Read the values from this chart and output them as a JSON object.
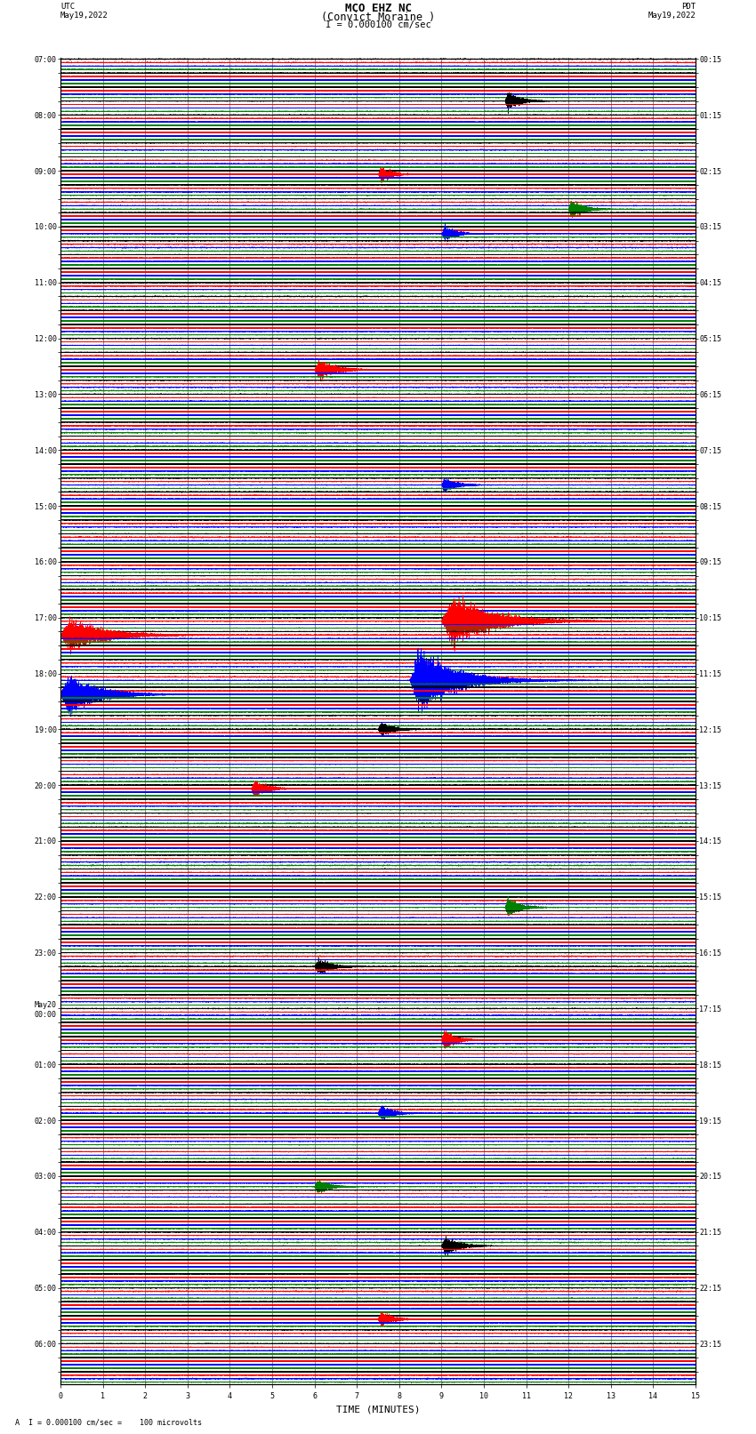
{
  "title_line1": "MCO EHZ NC",
  "title_line2": "(Convict Moraine )",
  "title_line3": "I = 0.000100 cm/sec",
  "left_header_line1": "UTC",
  "left_header_line2": "May19,2022",
  "right_header_line1": "PDT",
  "right_header_line2": "May19,2022",
  "xlabel": "TIME (MINUTES)",
  "footer": "A  I = 0.000100 cm/sec =    100 microvolts",
  "scale_bar_label": "I = 0.000100 cm/sec",
  "background_color": "#ffffff",
  "trace_colors": [
    "black",
    "red",
    "blue",
    "green"
  ],
  "utc_labels": [
    "07:00",
    "",
    "",
    "",
    "08:00",
    "",
    "",
    "",
    "09:00",
    "",
    "",
    "",
    "10:00",
    "",
    "",
    "",
    "11:00",
    "",
    "",
    "",
    "12:00",
    "",
    "",
    "",
    "13:00",
    "",
    "",
    "",
    "14:00",
    "",
    "",
    "",
    "15:00",
    "",
    "",
    "",
    "16:00",
    "",
    "",
    "",
    "17:00",
    "",
    "",
    "",
    "18:00",
    "",
    "",
    "",
    "19:00",
    "",
    "",
    "",
    "20:00",
    "",
    "",
    "",
    "21:00",
    "",
    "",
    "",
    "22:00",
    "",
    "",
    "",
    "23:00",
    "",
    "",
    "",
    "May20\n00:00",
    "",
    "",
    "",
    "01:00",
    "",
    "",
    "",
    "02:00",
    "",
    "",
    "",
    "03:00",
    "",
    "",
    "",
    "04:00",
    "",
    "",
    "",
    "05:00",
    "",
    "",
    "",
    "06:00",
    "",
    ""
  ],
  "pdt_labels": [
    "00:15",
    "",
    "",
    "",
    "01:15",
    "",
    "",
    "",
    "02:15",
    "",
    "",
    "",
    "03:15",
    "",
    "",
    "",
    "04:15",
    "",
    "",
    "",
    "05:15",
    "",
    "",
    "",
    "06:15",
    "",
    "",
    "",
    "07:15",
    "",
    "",
    "",
    "08:15",
    "",
    "",
    "",
    "09:15",
    "",
    "",
    "",
    "10:15",
    "",
    "",
    "",
    "11:15",
    "",
    "",
    "",
    "12:15",
    "",
    "",
    "",
    "13:15",
    "",
    "",
    "",
    "14:15",
    "",
    "",
    "",
    "15:15",
    "",
    "",
    "",
    "16:15",
    "",
    "",
    "",
    "17:15",
    "",
    "",
    "",
    "18:15",
    "",
    "",
    "",
    "19:15",
    "",
    "",
    "",
    "20:15",
    "",
    "",
    "",
    "21:15",
    "",
    "",
    "",
    "22:15",
    "",
    "",
    "",
    "23:15",
    "",
    ""
  ],
  "num_rows": 95,
  "minutes": 15,
  "seed": 12345,
  "xticks": [
    0,
    1,
    2,
    3,
    4,
    5,
    6,
    7,
    8,
    9,
    10,
    11,
    12,
    13,
    14,
    15
  ],
  "title_fontsize": 9,
  "label_fontsize": 7,
  "tick_fontsize": 6,
  "fig_width": 8.5,
  "fig_height": 16.13
}
